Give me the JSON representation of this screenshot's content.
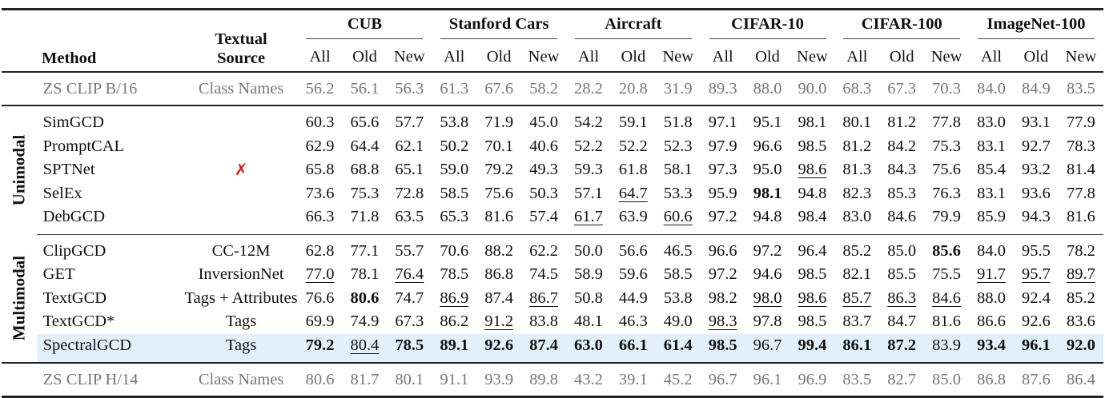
{
  "header": {
    "method": "Method",
    "textual_source": [
      "Textual",
      "Source"
    ],
    "datasets": [
      "CUB",
      "Stanford Cars",
      "Aircraft",
      "CIFAR-10",
      "CIFAR-100",
      "ImageNet-100"
    ],
    "subcols": [
      "All",
      "Old",
      "New"
    ]
  },
  "baseline_top": {
    "method": "ZS CLIP B/16",
    "source": "Class Names",
    "values": [
      "56.2",
      "56.1",
      "56.3",
      "61.3",
      "67.6",
      "58.2",
      "28.2",
      "20.8",
      "31.9",
      "89.3",
      "88.0",
      "90.0",
      "68.3",
      "67.3",
      "70.3",
      "84.0",
      "84.9",
      "83.5"
    ]
  },
  "groups": [
    {
      "label": "Unimodal",
      "source_icon": "red-cross-icon",
      "source_glyph": "✗",
      "rows": [
        {
          "method": "SimGCD",
          "source": "",
          "values": [
            "60.3",
            "65.6",
            "57.7",
            "53.8",
            "71.9",
            "45.0",
            "54.2",
            "59.1",
            "51.8",
            "97.1",
            "95.1",
            "98.1",
            "80.1",
            "81.2",
            "77.8",
            "83.0",
            "93.1",
            "77.9"
          ],
          "bold": [],
          "underline": []
        },
        {
          "method": "PromptCAL",
          "source": "",
          "values": [
            "62.9",
            "64.4",
            "62.1",
            "50.2",
            "70.1",
            "40.6",
            "52.2",
            "52.2",
            "52.3",
            "97.9",
            "96.6",
            "98.5",
            "81.2",
            "84.2",
            "75.3",
            "83.1",
            "92.7",
            "78.3"
          ],
          "bold": [],
          "underline": []
        },
        {
          "method": "SPTNet",
          "source": "",
          "values": [
            "65.8",
            "68.8",
            "65.1",
            "59.0",
            "79.2",
            "49.3",
            "59.3",
            "61.8",
            "58.1",
            "97.3",
            "95.0",
            "98.6",
            "81.3",
            "84.3",
            "75.6",
            "85.4",
            "93.2",
            "81.4"
          ],
          "bold": [],
          "underline": [
            11
          ]
        },
        {
          "method": "SelEx",
          "source": "",
          "values": [
            "73.6",
            "75.3",
            "72.8",
            "58.5",
            "75.6",
            "50.3",
            "57.1",
            "64.7",
            "53.3",
            "95.9",
            "98.1",
            "94.8",
            "82.3",
            "85.3",
            "76.3",
            "83.1",
            "93.6",
            "77.8"
          ],
          "bold": [
            10
          ],
          "underline": [
            7
          ]
        },
        {
          "method": "DebGCD",
          "source": "",
          "values": [
            "66.3",
            "71.8",
            "63.5",
            "65.3",
            "81.6",
            "57.4",
            "61.7",
            "63.9",
            "60.6",
            "97.2",
            "94.8",
            "98.4",
            "83.0",
            "84.6",
            "79.9",
            "85.9",
            "94.3",
            "81.6"
          ],
          "bold": [],
          "underline": [
            6,
            8
          ]
        }
      ]
    },
    {
      "label": "Multimodal",
      "rows": [
        {
          "method": "ClipGCD",
          "source": "CC-12M",
          "values": [
            "62.8",
            "77.1",
            "55.7",
            "70.6",
            "88.2",
            "62.2",
            "50.0",
            "56.6",
            "46.5",
            "96.6",
            "97.2",
            "96.4",
            "85.2",
            "85.0",
            "85.6",
            "84.0",
            "95.5",
            "78.2"
          ],
          "bold": [
            14
          ],
          "underline": []
        },
        {
          "method": "GET",
          "source": "InversionNet",
          "values": [
            "77.0",
            "78.1",
            "76.4",
            "78.5",
            "86.8",
            "74.5",
            "58.9",
            "59.6",
            "58.5",
            "97.2",
            "94.6",
            "98.5",
            "82.1",
            "85.5",
            "75.5",
            "91.7",
            "95.7",
            "89.7"
          ],
          "bold": [],
          "underline": [
            0,
            2,
            15,
            16,
            17
          ]
        },
        {
          "method": "TextGCD",
          "source": "Tags + Attributes",
          "values": [
            "76.6",
            "80.6",
            "74.7",
            "86.9",
            "87.4",
            "86.7",
            "50.8",
            "44.9",
            "53.8",
            "98.2",
            "98.0",
            "98.6",
            "85.7",
            "86.3",
            "84.6",
            "88.0",
            "92.4",
            "85.2"
          ],
          "bold": [
            1
          ],
          "underline": [
            3,
            5,
            10,
            11,
            12,
            13,
            14
          ]
        },
        {
          "method": "TextGCD*",
          "source": "Tags",
          "values": [
            "69.9",
            "74.9",
            "67.3",
            "86.2",
            "91.2",
            "83.8",
            "48.1",
            "46.3",
            "49.0",
            "98.3",
            "97.8",
            "98.5",
            "83.7",
            "84.7",
            "81.6",
            "86.6",
            "92.6",
            "83.6"
          ],
          "bold": [],
          "underline": [
            4,
            9
          ]
        },
        {
          "method": "SpectralGCD",
          "source": "Tags",
          "highlight": true,
          "values": [
            "79.2",
            "80.4",
            "78.5",
            "89.1",
            "92.6",
            "87.4",
            "63.0",
            "66.1",
            "61.4",
            "98.5",
            "96.7",
            "99.4",
            "86.1",
            "87.2",
            "83.9",
            "93.4",
            "96.1",
            "92.0"
          ],
          "bold": [
            0,
            2,
            3,
            4,
            5,
            6,
            7,
            8,
            9,
            11,
            12,
            13,
            15,
            16,
            17
          ],
          "underline": [
            1
          ]
        }
      ]
    }
  ],
  "baseline_bottom": {
    "method": "ZS CLIP H/14",
    "source": "Class Names",
    "values": [
      "80.6",
      "81.7",
      "80.1",
      "91.1",
      "93.9",
      "89.8",
      "43.2",
      "39.1",
      "45.2",
      "96.7",
      "96.1",
      "96.9",
      "83.5",
      "82.7",
      "85.0",
      "86.8",
      "87.6",
      "86.4"
    ]
  },
  "colors": {
    "highlight_row": "#e1f0fb",
    "baseline_text": "#777777",
    "cross": "#d31919"
  }
}
